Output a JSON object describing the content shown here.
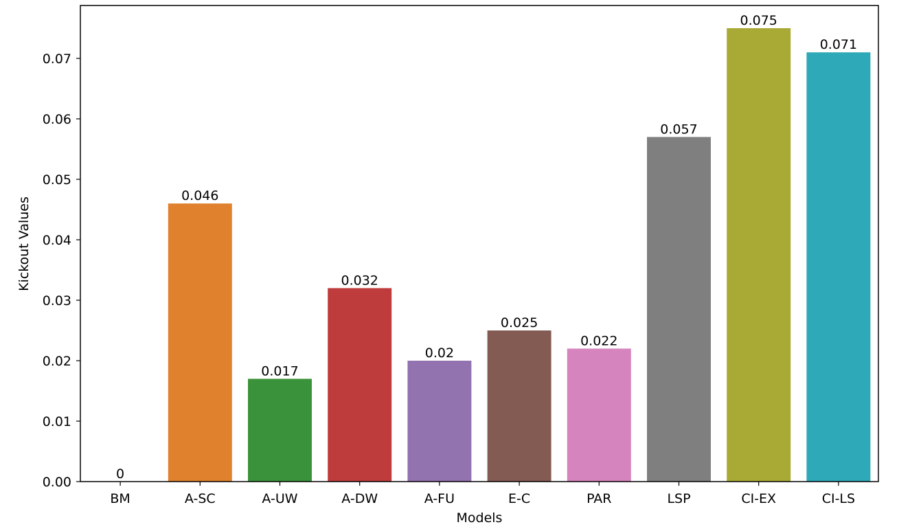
{
  "chart_data": {
    "type": "bar",
    "xlabel": "Models",
    "ylabel": "Kickout Values",
    "categories": [
      "BM",
      "A-SC",
      "A-UW",
      "A-DW",
      "A-FU",
      "E-C",
      "PAR",
      "LSP",
      "CI-EX",
      "CI-LS"
    ],
    "values": [
      0,
      0.046,
      0.017,
      0.032,
      0.02,
      0.025,
      0.022,
      0.057,
      0.075,
      0.071
    ],
    "data_labels": [
      "0",
      "0.046",
      "0.017",
      "0.032",
      "0.02",
      "0.025",
      "0.022",
      "0.057",
      "0.075",
      "0.071"
    ],
    "colors": [
      "#1f77b4",
      "#e0812d",
      "#3a923a",
      "#bf3c3d",
      "#9372b0",
      "#845b53",
      "#d584be",
      "#7f7f7f",
      "#a9aa35",
      "#2da9b8"
    ],
    "yticks": [
      0,
      0.01,
      0.02,
      0.03,
      0.04,
      0.05,
      0.06,
      0.07
    ],
    "ytick_labels": [
      "0.00",
      "0.01",
      "0.02",
      "0.03",
      "0.04",
      "0.05",
      "0.06",
      "0.07"
    ],
    "ylim": [
      0,
      0.07875
    ],
    "grid": false,
    "legend": "none"
  }
}
